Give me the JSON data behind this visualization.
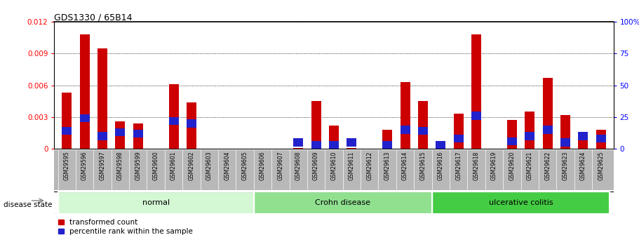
{
  "title": "GDS1330 / 65B14",
  "samples": [
    "GSM29595",
    "GSM29596",
    "GSM29597",
    "GSM29598",
    "GSM29599",
    "GSM29600",
    "GSM29601",
    "GSM29602",
    "GSM29603",
    "GSM29604",
    "GSM29605",
    "GSM29606",
    "GSM29607",
    "GSM29608",
    "GSM29609",
    "GSM29610",
    "GSM29611",
    "GSM29612",
    "GSM29613",
    "GSM29614",
    "GSM29615",
    "GSM29616",
    "GSM29617",
    "GSM29618",
    "GSM29619",
    "GSM29620",
    "GSM29621",
    "GSM29622",
    "GSM29623",
    "GSM29624",
    "GSM29625"
  ],
  "transformed_count": [
    0.0053,
    0.0108,
    0.0095,
    0.0026,
    0.0024,
    0.0,
    0.0061,
    0.0044,
    0.0,
    0.0,
    0.0,
    0.0,
    0.0,
    0.0001,
    0.0045,
    0.0022,
    0.0001,
    0.0,
    0.0018,
    0.0063,
    0.0045,
    0.0001,
    0.0033,
    0.0108,
    0.0,
    0.0027,
    0.0035,
    0.0067,
    0.0032,
    0.0015,
    0.0018
  ],
  "percentile_rank": [
    14,
    24,
    10,
    13,
    12,
    0,
    22,
    20,
    0,
    0,
    0,
    0,
    0,
    5,
    3,
    3,
    5,
    0,
    2,
    15,
    14,
    1,
    8,
    26,
    0,
    6,
    10,
    15,
    5,
    10,
    8
  ],
  "groups": [
    {
      "name": "normal",
      "start": 0,
      "end": 11,
      "color": "#d4f7d4"
    },
    {
      "name": "Crohn disease",
      "start": 11,
      "end": 21,
      "color": "#90e090"
    },
    {
      "name": "ulcerative colitis",
      "start": 21,
      "end": 31,
      "color": "#44cc44"
    }
  ],
  "bar_color_red": "#cc0000",
  "bar_color_blue": "#2222cc",
  "ylim_left": [
    0,
    0.012
  ],
  "ylim_right": [
    0,
    100
  ],
  "yticks_left": [
    0,
    0.003,
    0.006,
    0.009,
    0.012
  ],
  "yticks_right": [
    0,
    25,
    50,
    75,
    100
  ],
  "ytick_labels_left": [
    "0",
    "0.003",
    "0.006",
    "0.009",
    "0.012"
  ],
  "ytick_labels_right": [
    "0",
    "25",
    "50",
    "75",
    "100%"
  ],
  "bar_width": 0.55,
  "disease_state_label": "disease state",
  "legend_items": [
    "transformed count",
    "percentile rank within the sample"
  ],
  "xlabel_gray": "#b8b8b8",
  "n_samples": 31
}
